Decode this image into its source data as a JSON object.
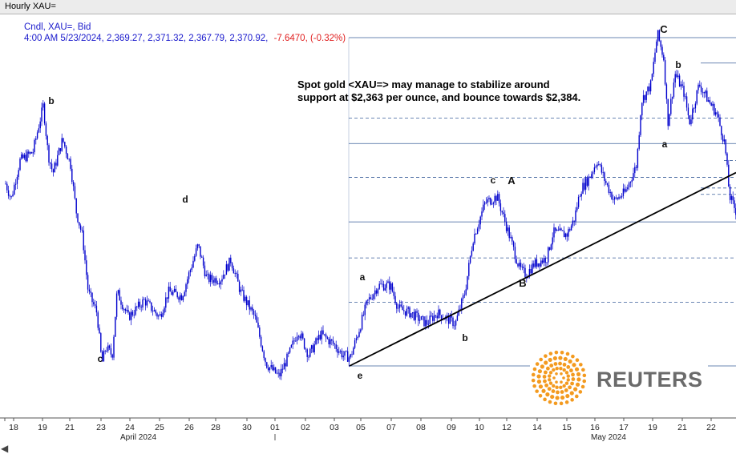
{
  "window": {
    "title": "Hourly XAU="
  },
  "header": {
    "line1": "Cndl, XAU=, Bid",
    "line2_prefix": "4:00 AM 5/23/2024, 2,369.27, 2,371.32, 2,367.79, 2,370.92,",
    "line2_change": "-7.6470, (-0.32%)"
  },
  "comment": {
    "line1": "Spot gold <XAU=> may manage to stabilize around",
    "line2": "support at $2,363 per ounce, and bounce towards $2,384."
  },
  "logo": {
    "text": "REUTERS"
  },
  "colors": {
    "candle": "#0000cc",
    "header_text": "#1a1acc",
    "change_text": "#e02020",
    "level_line": "#3a5f9a",
    "trendline": "#000000",
    "logo_orange": "#f39a1f"
  },
  "chart_data": {
    "type": "candlestick",
    "title": "Hourly XAU=",
    "series_name": "XAU= Bid",
    "x_tick_labels": [
      "18",
      "19",
      "21",
      "23",
      "24",
      "25",
      "26",
      "28",
      "30",
      "01",
      "02",
      "03",
      "05",
      "07",
      "08",
      "09",
      "10",
      "12",
      "14",
      "15",
      "16",
      "17",
      "19",
      "21",
      "22"
    ],
    "month_labels": [
      "April 2024",
      "May 2024"
    ],
    "price_path": [
      {
        "date": "04-18",
        "price": 2381
      },
      {
        "date": "04-19",
        "price": 2393
      },
      {
        "date": "04-19",
        "price": 2417
      },
      {
        "date": "04-19",
        "price": 2380
      },
      {
        "date": "04-21",
        "price": 2385
      },
      {
        "date": "04-21",
        "price": 2360
      },
      {
        "date": "04-22",
        "price": 2320
      },
      {
        "date": "04-23",
        "price": 2296
      },
      {
        "date": "04-23",
        "price": 2330
      },
      {
        "date": "04-24",
        "price": 2318
      },
      {
        "date": "04-25",
        "price": 2335
      },
      {
        "date": "04-25",
        "price": 2320
      },
      {
        "date": "04-26",
        "price": 2352
      },
      {
        "date": "04-27",
        "price": 2332
      },
      {
        "date": "04-28",
        "price": 2342
      },
      {
        "date": "04-29",
        "price": 2325
      },
      {
        "date": "04-30",
        "price": 2295
      },
      {
        "date": "05-01",
        "price": 2288
      },
      {
        "date": "05-02",
        "price": 2312
      },
      {
        "date": "05-03",
        "price": 2300
      },
      {
        "date": "05-03",
        "price": 2310
      },
      {
        "date": "05-04",
        "price": 2300
      },
      {
        "date": "05-05",
        "price": 2320
      },
      {
        "date": "05-06",
        "price": 2330
      },
      {
        "date": "05-07",
        "price": 2320
      },
      {
        "date": "05-08",
        "price": 2315
      },
      {
        "date": "05-09",
        "price": 2325
      },
      {
        "date": "05-09",
        "price": 2345
      },
      {
        "date": "05-10",
        "price": 2375
      },
      {
        "date": "05-11",
        "price": 2372
      },
      {
        "date": "05-12",
        "price": 2350
      },
      {
        "date": "05-13",
        "price": 2337
      },
      {
        "date": "05-14",
        "price": 2345
      },
      {
        "date": "05-15",
        "price": 2360
      },
      {
        "date": "05-16",
        "price": 2395
      },
      {
        "date": "05-17",
        "price": 2378
      },
      {
        "date": "05-18",
        "price": 2400
      },
      {
        "date": "05-19",
        "price": 2440
      },
      {
        "date": "05-20",
        "price": 2450
      },
      {
        "date": "05-20",
        "price": 2416
      },
      {
        "date": "05-21",
        "price": 2425
      },
      {
        "date": "05-21",
        "price": 2407
      },
      {
        "date": "05-21",
        "price": 2420
      },
      {
        "date": "05-22",
        "price": 2406
      },
      {
        "date": "05-23",
        "price": 2370
      }
    ],
    "horizontal_levels": [
      2450,
      2438,
      2412,
      2400,
      2392,
      2384,
      2379,
      2376,
      2363,
      2346,
      2325,
      2295
    ],
    "trendline": [
      {
        "date": "05-03",
        "price": 2295
      },
      {
        "date": "05-23",
        "price": 2384
      }
    ],
    "annotations": [
      {
        "label": "b",
        "date": "04-19",
        "price": 2430
      },
      {
        "label": "c",
        "date": "04-23",
        "price": 2287
      },
      {
        "label": "d",
        "date": "04-26",
        "price": 2360
      },
      {
        "label": "e",
        "date": "05-03",
        "price": 2293
      },
      {
        "label": "a",
        "date": "05-04",
        "price": 2336
      },
      {
        "label": "b",
        "date": "05-09",
        "price": 2309
      },
      {
        "label": "c",
        "date": "05-10",
        "price": 2378
      },
      {
        "label": "A",
        "date": "05-11",
        "price": 2378
      },
      {
        "label": "B",
        "date": "05-12",
        "price": 2333
      },
      {
        "label": "C",
        "date": "05-20",
        "price": 2457
      },
      {
        "label": "b",
        "date": "05-21",
        "price": 2446
      },
      {
        "label": "a",
        "date": "05-20",
        "price": 2405
      }
    ]
  }
}
